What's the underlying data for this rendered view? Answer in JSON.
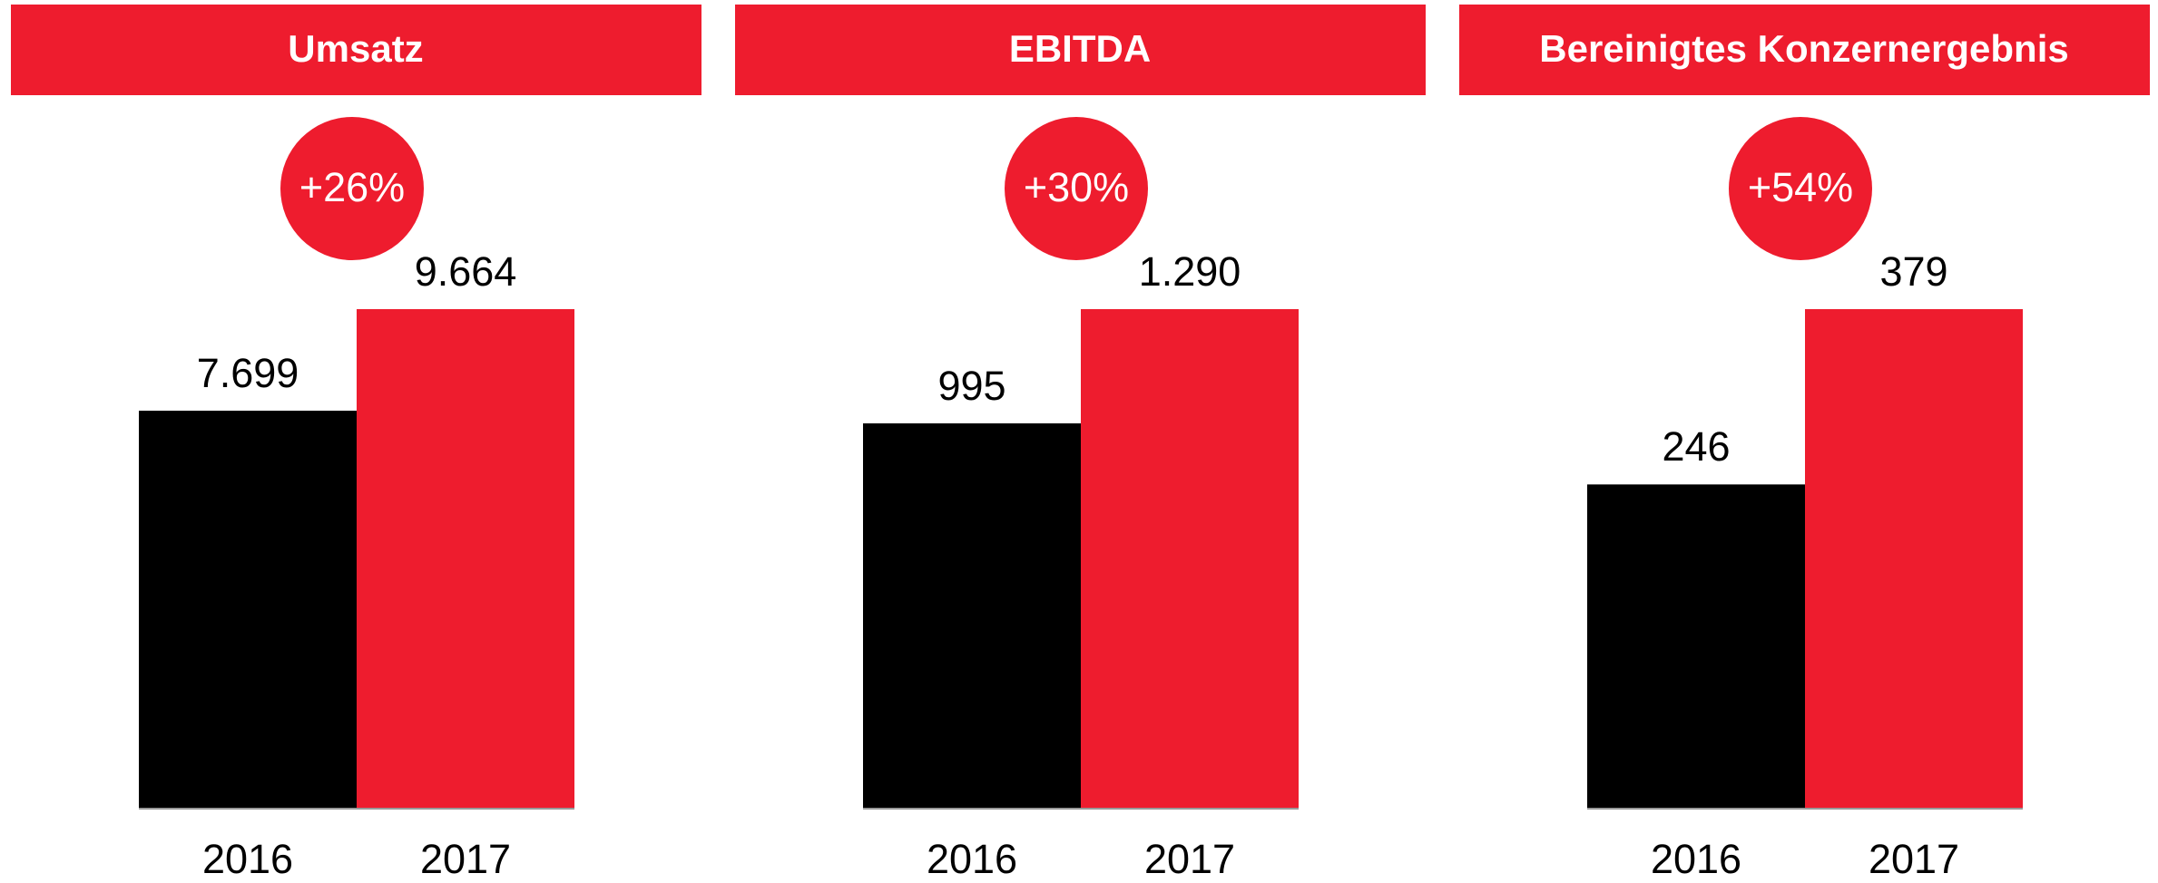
{
  "chart_data": [
    {
      "type": "bar",
      "title": "Umsatz",
      "annotation": "+26%",
      "categories": [
        "2016",
        "2017"
      ],
      "values": [
        7699,
        9664
      ],
      "value_labels": [
        "7.699",
        "9.664"
      ],
      "colors": [
        "#000000",
        "#ee1c2e"
      ]
    },
    {
      "type": "bar",
      "title": "EBITDA",
      "annotation": "+30%",
      "categories": [
        "2016",
        "2017"
      ],
      "values": [
        995,
        1290
      ],
      "value_labels": [
        "995",
        "1.290"
      ],
      "colors": [
        "#000000",
        "#ee1c2e"
      ]
    },
    {
      "type": "bar",
      "title": "Bereinigtes Konzernergebnis",
      "annotation": "+54%",
      "categories": [
        "2016",
        "2017"
      ],
      "values": [
        246,
        379
      ],
      "value_labels": [
        "246",
        "379"
      ],
      "colors": [
        "#000000",
        "#ee1c2e"
      ]
    }
  ]
}
